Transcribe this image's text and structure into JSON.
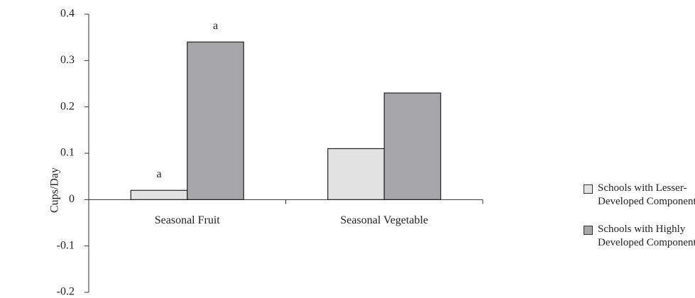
{
  "chart_data": {
    "type": "bar",
    "y_label": "Cups/Day",
    "categories": [
      "Seasonal Fruit",
      "Seasonal Vegetable"
    ],
    "series": [
      {
        "name": "Schools with Lesser-Developed Components",
        "color": "#e2e2e2",
        "values": [
          0.02,
          0.11
        ],
        "labels": [
          "a",
          null
        ]
      },
      {
        "name": "Schools with Highly Developed Components",
        "color": "#a6a6a9",
        "values": [
          0.34,
          0.23
        ],
        "labels": [
          "a",
          null
        ]
      }
    ],
    "ylim": [
      -0.2,
      0.4
    ],
    "yticks": [
      0.4,
      0.3,
      0.2,
      0.1,
      0,
      -0.1,
      -0.2
    ],
    "grid": false,
    "legend": "right"
  }
}
